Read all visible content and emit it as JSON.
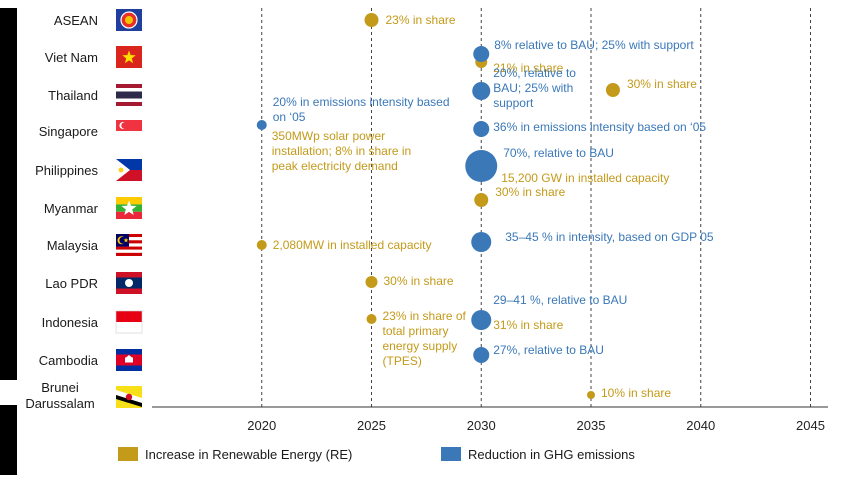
{
  "colors": {
    "re": "#C49A1A",
    "ghg": "#3A78B8",
    "grid": "#444444",
    "country": "#1a1a1a",
    "tick": "#222222"
  },
  "chart_data": {
    "type": "scatter",
    "title": "",
    "xlabel": "",
    "ylabel": "",
    "xlim": [
      2015,
      2045
    ],
    "x_ticks": [
      2020,
      2025,
      2030,
      2035,
      2040,
      2045
    ],
    "grid": "vertical dashed",
    "legend_position": "bottom",
    "countries": [
      {
        "name": "ASEAN",
        "flag": "asean"
      },
      {
        "name": "Viet Nam",
        "flag": "vietnam"
      },
      {
        "name": "Thailand",
        "flag": "thailand"
      },
      {
        "name": "Singapore",
        "flag": "singapore"
      },
      {
        "name": "Philippines",
        "flag": "philippines"
      },
      {
        "name": "Myanmar",
        "flag": "myanmar"
      },
      {
        "name": "Malaysia",
        "flag": "malaysia"
      },
      {
        "name": "Lao PDR",
        "flag": "laos"
      },
      {
        "name": "Indonesia",
        "flag": "indonesia"
      },
      {
        "name": "Cambodia",
        "flag": "cambodia"
      },
      {
        "name": "Brunei Darussalam",
        "flag": "brunei"
      }
    ],
    "series": [
      {
        "name": "Increase in Renewable Energy (RE)",
        "key": "re",
        "points": [
          {
            "country": "ASEAN",
            "year": 2025,
            "label": [
              "23% in share"
            ]
          },
          {
            "country": "Viet Nam",
            "year": 2030,
            "label": [
              "21% in share"
            ]
          },
          {
            "country": "Thailand",
            "year": 2036,
            "label": [
              "30% in share"
            ]
          },
          {
            "country": "Singapore",
            "year": 2020,
            "label": [
              "350MWp solar power",
              "installation; 8% in share in",
              "peak electricity demand"
            ]
          },
          {
            "country": "Philippines",
            "year": 2030,
            "label": [
              "15,200 GW in installed capacity"
            ]
          },
          {
            "country": "Myanmar",
            "year": 2030,
            "label": [
              "30% in share"
            ]
          },
          {
            "country": "Malaysia",
            "year": 2020,
            "label": [
              "2,080MW in installed capacity"
            ]
          },
          {
            "country": "Lao PDR",
            "year": 2025,
            "label": [
              "30% in share"
            ]
          },
          {
            "country": "Indonesia",
            "year": 2025,
            "label": [
              "23% in share of",
              "total primary",
              "energy supply",
              "(TPES)"
            ]
          },
          {
            "country": "Indonesia",
            "year": 2030,
            "label": [
              "31% in share"
            ]
          },
          {
            "country": "Brunei Darussalam",
            "year": 2035,
            "label": [
              "10% in share"
            ]
          }
        ]
      },
      {
        "name": "Reduction in GHG emissions",
        "key": "ghg",
        "points": [
          {
            "country": "Viet Nam",
            "year": 2030,
            "label": [
              "8% relative to BAU; 25% with support"
            ]
          },
          {
            "country": "Thailand",
            "year": 2030,
            "label": [
              "20%, relative to",
              "BAU; 25% with",
              "support"
            ]
          },
          {
            "country": "Singapore",
            "year": 2020,
            "label": [
              "20% in emissions intensity based",
              "on ‘05"
            ]
          },
          {
            "country": "Singapore",
            "year": 2030,
            "label": [
              "36% in emissions intensity based on ‘05"
            ]
          },
          {
            "country": "Philippines",
            "year": 2030,
            "label": [
              "70%, relative to BAU"
            ]
          },
          {
            "country": "Malaysia",
            "year": 2030,
            "label": [
              "35–45 % in intensity, based on GDP 05"
            ]
          },
          {
            "country": "Indonesia",
            "year": 2030,
            "label": [
              "29–41 %, relative to BAU"
            ]
          },
          {
            "country": "Cambodia",
            "year": 2030,
            "label": [
              "27%, relative to BAU"
            ]
          }
        ]
      }
    ]
  }
}
